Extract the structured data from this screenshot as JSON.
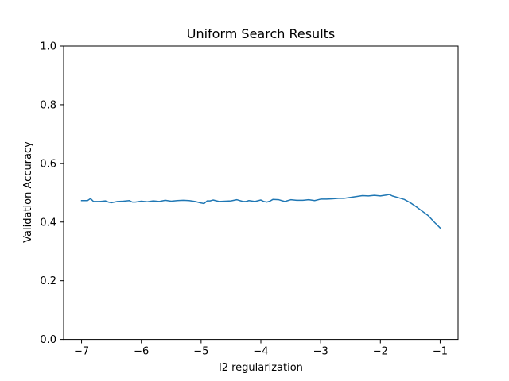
{
  "chart_data": {
    "type": "line",
    "title": "Uniform Search Results",
    "xlabel": "l2 regularization",
    "ylabel": "Validation Accuracy",
    "xlim": [
      -7.3,
      -0.7
    ],
    "ylim": [
      0.0,
      1.0
    ],
    "xticks": [
      -7,
      -6,
      -5,
      -4,
      -3,
      -2,
      -1
    ],
    "xtick_labels": [
      "−7",
      "−6",
      "−5",
      "−4",
      "−3",
      "−2",
      "−1"
    ],
    "yticks": [
      0.0,
      0.2,
      0.4,
      0.6,
      0.8,
      1.0
    ],
    "ytick_labels": [
      "0.0",
      "0.2",
      "0.4",
      "0.6",
      "0.8",
      "1.0"
    ],
    "grid": false,
    "series": [
      {
        "color": "#1f77b4",
        "x": [
          -7.0,
          -6.9,
          -6.85,
          -6.8,
          -6.7,
          -6.6,
          -6.55,
          -6.5,
          -6.4,
          -6.3,
          -6.2,
          -6.15,
          -6.1,
          -6.0,
          -5.9,
          -5.8,
          -5.7,
          -5.6,
          -5.5,
          -5.4,
          -5.3,
          -5.2,
          -5.1,
          -5.0,
          -4.95,
          -4.9,
          -4.85,
          -4.8,
          -4.7,
          -4.6,
          -4.5,
          -4.4,
          -4.3,
          -4.25,
          -4.2,
          -4.1,
          -4.0,
          -3.95,
          -3.9,
          -3.85,
          -3.8,
          -3.7,
          -3.6,
          -3.5,
          -3.4,
          -3.3,
          -3.2,
          -3.1,
          -3.0,
          -2.9,
          -2.8,
          -2.7,
          -2.6,
          -2.5,
          -2.4,
          -2.3,
          -2.2,
          -2.1,
          -2.0,
          -1.9,
          -1.85,
          -1.8,
          -1.7,
          -1.6,
          -1.5,
          -1.4,
          -1.3,
          -1.2,
          -1.1,
          -1.0
        ],
        "y": [
          0.473,
          0.473,
          0.48,
          0.47,
          0.47,
          0.472,
          0.468,
          0.466,
          0.47,
          0.471,
          0.473,
          0.468,
          0.468,
          0.471,
          0.469,
          0.472,
          0.47,
          0.474,
          0.471,
          0.473,
          0.474,
          0.473,
          0.47,
          0.465,
          0.463,
          0.472,
          0.472,
          0.475,
          0.47,
          0.471,
          0.472,
          0.476,
          0.47,
          0.47,
          0.473,
          0.47,
          0.475,
          0.47,
          0.468,
          0.471,
          0.477,
          0.476,
          0.47,
          0.476,
          0.474,
          0.474,
          0.476,
          0.473,
          0.478,
          0.478,
          0.479,
          0.481,
          0.481,
          0.484,
          0.487,
          0.49,
          0.489,
          0.491,
          0.489,
          0.492,
          0.494,
          0.489,
          0.483,
          0.477,
          0.466,
          0.452,
          0.437,
          0.422,
          0.4,
          0.38
        ]
      }
    ]
  }
}
